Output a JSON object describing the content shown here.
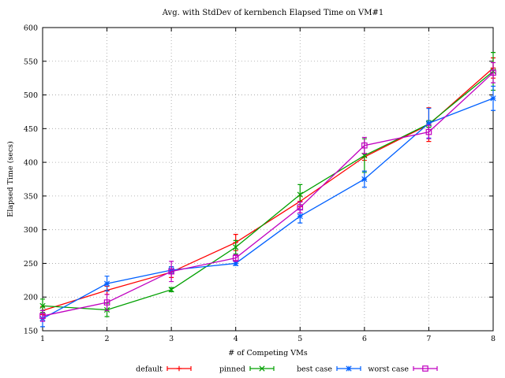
{
  "chart_data": {
    "type": "line",
    "title": "Avg. with StdDev of kernbench Elapsed Time on VM#1",
    "xlabel": "# of Competing VMs",
    "ylabel": "Elapsed Time (secs)",
    "xlim": [
      1,
      8
    ],
    "ylim": [
      150,
      600
    ],
    "x_ticks": [
      1,
      2,
      3,
      4,
      5,
      6,
      7,
      8
    ],
    "y_ticks": [
      150,
      200,
      250,
      300,
      350,
      400,
      450,
      500,
      550,
      600
    ],
    "grid": true,
    "legend_position": "bottom",
    "series": [
      {
        "name": "default",
        "color": "#ff0000",
        "marker": "plus",
        "x": [
          1,
          2,
          3,
          4,
          5,
          6,
          7,
          8
        ],
        "y": [
          180,
          210,
          237,
          281,
          342,
          408,
          456,
          540
        ],
        "err": [
          6,
          6,
          8,
          12,
          8,
          5,
          25,
          15
        ]
      },
      {
        "name": "pinned",
        "color": "#00a000",
        "marker": "cross",
        "x": [
          1,
          2,
          3,
          4,
          5,
          6,
          7,
          8
        ],
        "y": [
          187,
          181,
          211,
          274,
          352,
          410,
          457,
          535
        ],
        "err": [
          10,
          10,
          3,
          10,
          15,
          25,
          5,
          28
        ]
      },
      {
        "name": "best case",
        "color": "#0060ff",
        "marker": "star",
        "x": [
          1,
          2,
          3,
          4,
          5,
          6,
          7,
          8
        ],
        "y": [
          168,
          220,
          240,
          250,
          320,
          375,
          458,
          495
        ],
        "err": [
          12,
          11,
          5,
          3,
          10,
          12,
          22,
          18
        ]
      },
      {
        "name": "worst case",
        "color": "#c000c0",
        "marker": "square",
        "x": [
          1,
          2,
          3,
          4,
          5,
          6,
          7,
          8
        ],
        "y": [
          172,
          192,
          238,
          258,
          333,
          425,
          445,
          533
        ],
        "err": [
          8,
          12,
          15,
          5,
          8,
          12,
          10,
          15
        ]
      }
    ]
  }
}
